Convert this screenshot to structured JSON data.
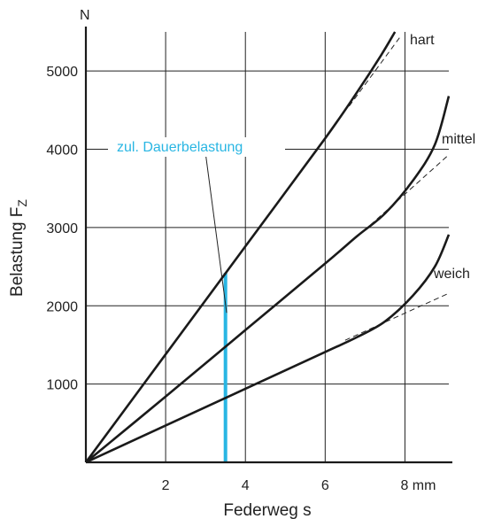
{
  "chart_data": {
    "type": "line",
    "title": "",
    "xlabel": "Federweg s",
    "ylabel_main": "Belastung F",
    "ylabel_sub": "Z",
    "y_unit": "N",
    "xlim": [
      0,
      9.1
    ],
    "ylim": [
      0,
      5500
    ],
    "x_ticks": [
      {
        "value": 2,
        "label": "2"
      },
      {
        "value": 4,
        "label": "4"
      },
      {
        "value": 6,
        "label": "6"
      },
      {
        "value": 8,
        "label": "8 mm"
      }
    ],
    "y_ticks": [
      {
        "value": 1000,
        "label": "1000"
      },
      {
        "value": 2000,
        "label": "2000"
      },
      {
        "value": 3000,
        "label": "3000"
      },
      {
        "value": 4000,
        "label": "4000"
      },
      {
        "value": 5000,
        "label": "5000"
      }
    ],
    "grid": true,
    "series": [
      {
        "name": "hart",
        "x": [
          0,
          2,
          4,
          6,
          6.8,
          7.4,
          7.75
        ],
        "y": [
          0,
          1380,
          2760,
          4140,
          4730,
          5200,
          5500
        ],
        "dashed_extension": {
          "x": [
            6.6,
            7.9
          ],
          "y": [
            4550,
            5450
          ]
        }
      },
      {
        "name": "mittel",
        "x": [
          0,
          2,
          4,
          6,
          6.8,
          7.5,
          8.2,
          8.75,
          9.1
        ],
        "y": [
          0,
          840,
          1690,
          2540,
          2890,
          3180,
          3600,
          4060,
          4680
        ],
        "dashed_extension": {
          "x": [
            6.8,
            9.1
          ],
          "y": [
            2880,
            3930
          ]
        }
      },
      {
        "name": "weich",
        "x": [
          0,
          2,
          4,
          6,
          6.8,
          7.5,
          8.2,
          8.75,
          9.1
        ],
        "y": [
          0,
          470,
          940,
          1410,
          1600,
          1800,
          2130,
          2500,
          2910
        ],
        "dashed_extension": {
          "x": [
            6.5,
            9.1
          ],
          "y": [
            1560,
            2160
          ]
        }
      }
    ],
    "annotations": [
      {
        "text": "zul. Dauerbelastung",
        "color": "#29b6e3",
        "x": 3.5,
        "y_from": 0,
        "y_to": 2420,
        "leader_line": {
          "x": [
            3.0,
            3.53
          ],
          "y": [
            3950,
            1910
          ]
        }
      }
    ]
  }
}
